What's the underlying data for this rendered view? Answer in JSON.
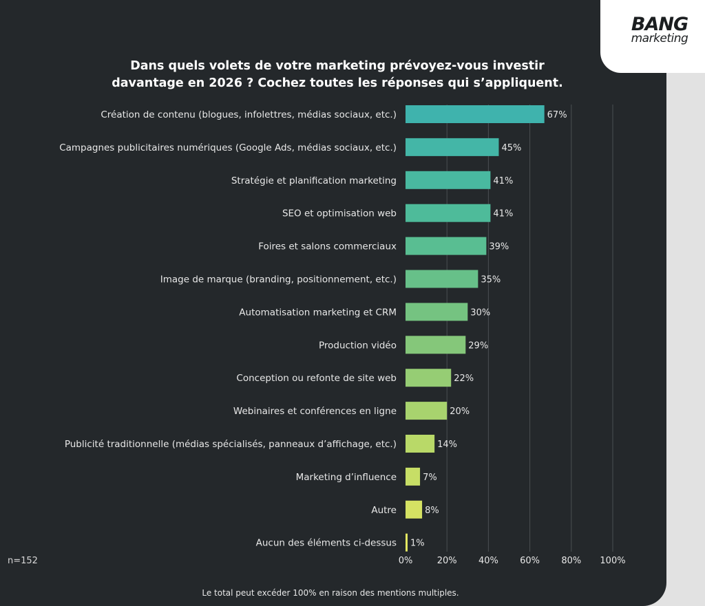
{
  "logo": {
    "line1": "BANG",
    "line2": "marketing"
  },
  "sample_size": "n=152",
  "footnote": "Le total peut excéder 100% en raison des mentions multiples.",
  "colors": {
    "background": "#24282b",
    "outer_background": "#e2e2e2",
    "gridline": "#4a4f53",
    "text": "#e8e8e8",
    "bar_gradient": [
      "#3fb3ad",
      "#4fbc98",
      "#7cc47d",
      "#b5d869",
      "#e3e761"
    ]
  },
  "chart_data": {
    "type": "bar",
    "orientation": "horizontal",
    "title": "Dans quels volets de votre marketing prévoyez-vous investir davantage en 2026 ? Cochez toutes les réponses qui s’appliquent.",
    "title_lines": [
      "Dans quels volets de votre marketing prévoyez-vous investir",
      "davantage en 2026 ? Cochez toutes les réponses qui s’appliquent."
    ],
    "xlabel": "",
    "ylabel": "",
    "xlim": [
      0,
      100
    ],
    "xticks": [
      0,
      20,
      40,
      60,
      80,
      100
    ],
    "xtick_labels": [
      "0%",
      "20%",
      "40%",
      "60%",
      "80%",
      "100%"
    ],
    "grid": true,
    "value_suffix": "%",
    "categories": [
      "Création de contenu (blogues, infolettres, médias sociaux, etc.)",
      "Campagnes publicitaires numériques (Google Ads, médias sociaux, etc.)",
      "Stratégie et planification marketing",
      "SEO et optimisation web",
      "Foires et salons commerciaux",
      "Image de marque (branding, positionnement, etc.)",
      "Automatisation marketing et CRM",
      "Production vidéo",
      "Conception ou refonte de site web",
      "Webinaires et conférences en ligne",
      "Publicité traditionnelle (médias spécialisés, panneaux d’affichage, etc.)",
      "Marketing d’influence",
      "Autre",
      "Aucun des éléments ci-dessus"
    ],
    "values": [
      67,
      45,
      41,
      41,
      39,
      35,
      30,
      29,
      22,
      20,
      14,
      7,
      8,
      1
    ]
  }
}
